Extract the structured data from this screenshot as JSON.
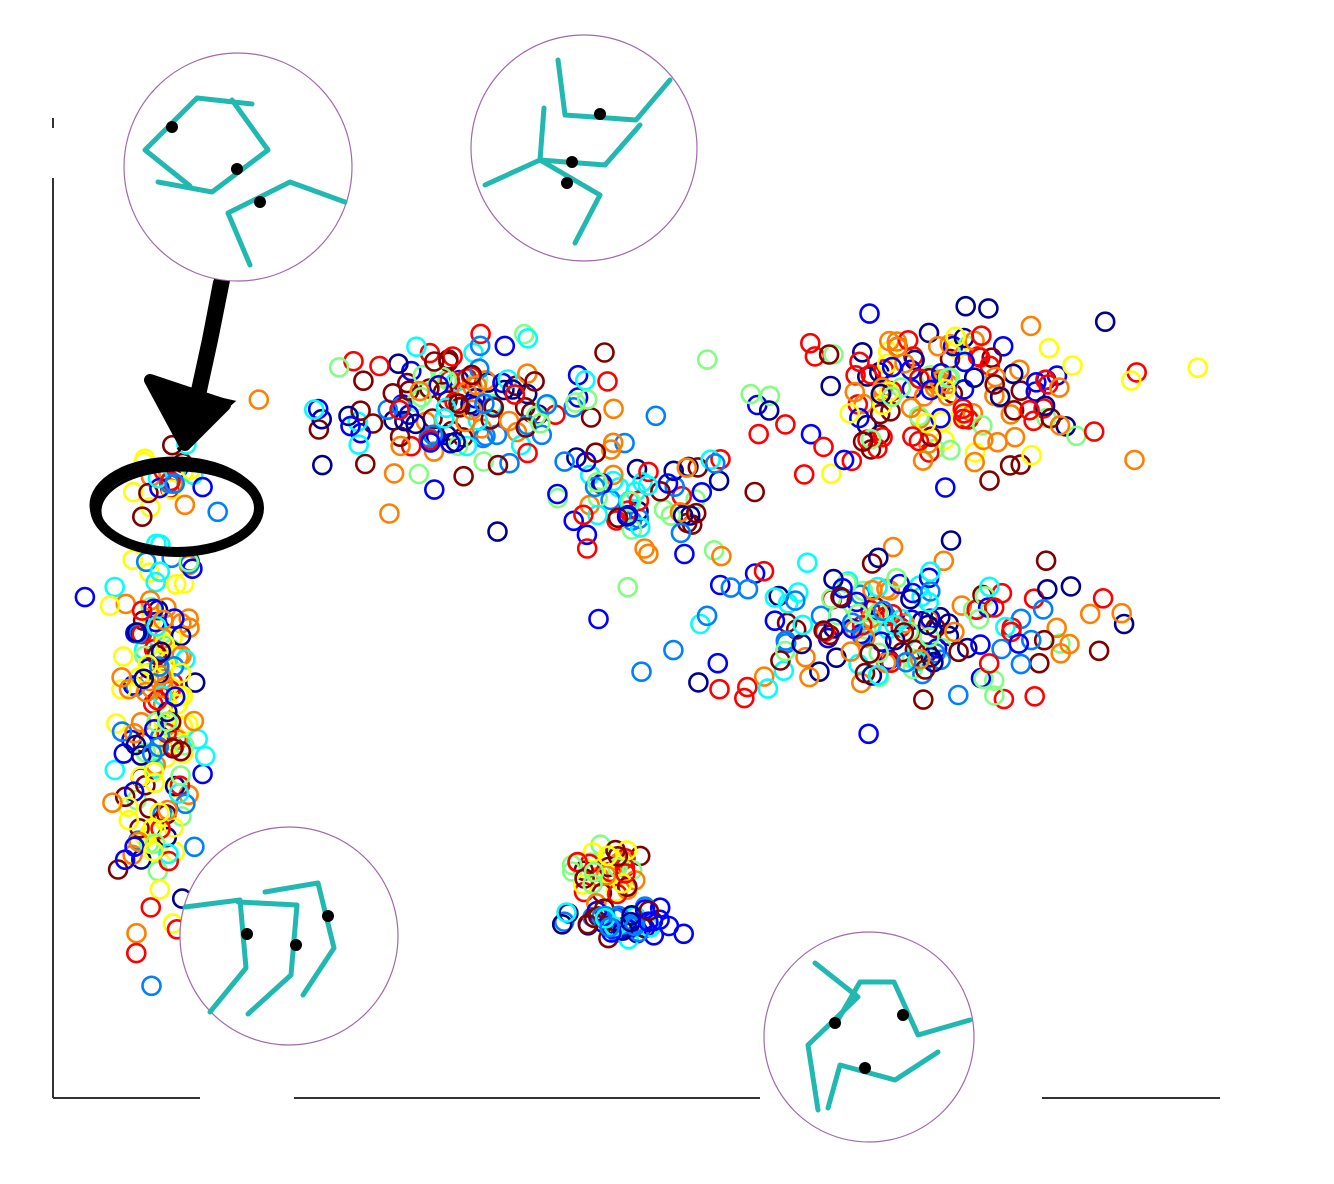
{
  "chart_data": {
    "type": "scatter",
    "title": "",
    "xlabel": "",
    "ylabel": "",
    "grid": false,
    "legend": "none",
    "marker": "open-circle",
    "xlim": [
      0,
      100
    ],
    "ylim": [
      0,
      100
    ],
    "palette": [
      "#00008f",
      "#0000ff",
      "#0080ff",
      "#00ffff",
      "#80ff80",
      "#ffff00",
      "#ff8000",
      "#ff0000",
      "#800000"
    ],
    "clusters": [
      {
        "name": "left-column",
        "cx": 9.0,
        "cy": 39.0,
        "sx": 1.8,
        "sy": 10.5,
        "n": 190,
        "colors": [
          5,
          5,
          5,
          6,
          6,
          3,
          2,
          1,
          0,
          7,
          8,
          4
        ]
      },
      {
        "name": "left-top",
        "cx": 10.3,
        "cy": 63.0,
        "sx": 1.4,
        "sy": 1.6,
        "n": 22,
        "colors": [
          5,
          6,
          7,
          8,
          3,
          1,
          2
        ]
      },
      {
        "name": "center-left",
        "cx": 35.0,
        "cy": 70.5,
        "sx": 6.0,
        "sy": 3.2,
        "n": 150,
        "colors": [
          0,
          1,
          2,
          3,
          4,
          6,
          7,
          8,
          8
        ]
      },
      {
        "name": "center-diagonal",
        "cx": 50.0,
        "cy": 60.5,
        "sx": 4.5,
        "sy": 3.0,
        "n": 70,
        "colors": [
          0,
          1,
          2,
          3,
          4,
          6,
          7,
          8
        ]
      },
      {
        "name": "upper-right",
        "cx": 76.0,
        "cy": 71.5,
        "sx": 7.0,
        "sy": 3.8,
        "n": 170,
        "colors": [
          6,
          7,
          7,
          8,
          0,
          1,
          4,
          5,
          6
        ]
      },
      {
        "name": "lower-right",
        "cx": 71.5,
        "cy": 48.0,
        "sx": 8.5,
        "sy": 3.8,
        "n": 190,
        "colors": [
          0,
          1,
          2,
          3,
          4,
          6,
          7,
          8
        ]
      },
      {
        "name": "bottom-warm",
        "cx": 47.2,
        "cy": 23.2,
        "sx": 1.4,
        "sy": 1.5,
        "n": 42,
        "colors": [
          4,
          5,
          6,
          7,
          8
        ]
      },
      {
        "name": "bottom-cool",
        "cx": 48.8,
        "cy": 17.6,
        "sx": 2.3,
        "sy": 0.9,
        "n": 58,
        "colors": [
          0,
          1,
          2,
          3,
          1,
          2,
          8
        ]
      }
    ],
    "insets": [
      {
        "name": "inset-top-left",
        "pose": "tricluster-ring"
      },
      {
        "name": "inset-top-center",
        "pose": "vertical-stack"
      },
      {
        "name": "inset-bottom-left",
        "pose": "parallel-chevrons"
      },
      {
        "name": "inset-bottom-right",
        "pose": "three-arm-cycle"
      }
    ],
    "annotation": {
      "arrow": true,
      "circled_cluster": "left-top"
    },
    "accent": "#20b8b0",
    "inset_border": "#a06aa8",
    "axis_color": "#333333"
  }
}
